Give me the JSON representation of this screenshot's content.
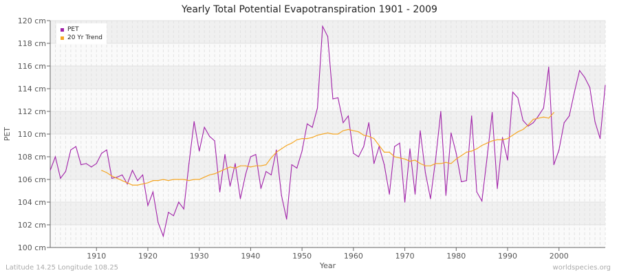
{
  "chart_data": {
    "type": "line",
    "title": "Yearly Total Potential Evapotranspiration 1901 - 2009",
    "xlabel": "Year",
    "ylabel": "PET",
    "ylim": [
      100,
      120
    ],
    "xlim": [
      1901,
      2009
    ],
    "y_unit": "cm",
    "yticks": [
      "100 cm",
      "102 cm",
      "104 cm",
      "106 cm",
      "108 cm",
      "110 cm",
      "112 cm",
      "114 cm",
      "116 cm",
      "118 cm",
      "120 cm"
    ],
    "xticks": [
      "1910",
      "1920",
      "1930",
      "1940",
      "1950",
      "1960",
      "1970",
      "1980",
      "1990",
      "2000"
    ],
    "grid": true,
    "legend_position": "top-left",
    "series": [
      {
        "name": "PET",
        "color": "#a020a8",
        "start_year": 1901,
        "values": [
          106.8,
          108.0,
          106.1,
          106.7,
          108.6,
          108.9,
          107.3,
          107.4,
          107.1,
          107.4,
          108.3,
          108.6,
          106.1,
          106.2,
          106.4,
          105.6,
          106.8,
          105.9,
          106.4,
          103.7,
          104.9,
          102.2,
          101.0,
          103.1,
          102.8,
          104.0,
          103.4,
          107.4,
          111.1,
          108.5,
          110.6,
          109.8,
          109.4,
          104.9,
          108.2,
          105.4,
          107.4,
          104.3,
          106.4,
          108.0,
          108.2,
          105.2,
          106.7,
          106.4,
          108.6,
          104.6,
          102.5,
          107.3,
          107.0,
          108.5,
          110.9,
          110.6,
          112.3,
          119.5,
          118.6,
          113.1,
          113.2,
          111.0,
          111.6,
          108.3,
          108.0,
          108.9,
          111.0,
          107.4,
          108.9,
          107.3,
          104.7,
          108.9,
          109.2,
          104.0,
          108.7,
          104.7,
          110.3,
          106.6,
          104.3,
          107.8,
          112.0,
          104.6,
          110.1,
          108.3,
          105.8,
          105.9,
          111.6,
          104.9,
          104.1,
          107.9,
          111.9,
          105.2,
          109.7,
          107.7,
          113.7,
          113.2,
          111.2,
          110.7,
          111.0,
          111.6,
          112.3,
          115.9,
          107.3,
          108.6,
          111.0,
          111.6,
          113.7,
          115.6,
          115.0,
          114.1,
          111.1,
          109.6,
          114.3
        ]
      },
      {
        "name": "20 Yr Trend",
        "color": "#f5a623",
        "start_year": 1911,
        "values": [
          106.8,
          106.6,
          106.3,
          106.1,
          105.9,
          105.7,
          105.5,
          105.5,
          105.6,
          105.7,
          105.9,
          105.9,
          106.0,
          105.9,
          106.0,
          106.0,
          106.0,
          105.9,
          106.0,
          106.0,
          106.2,
          106.4,
          106.5,
          106.7,
          106.9,
          107.1,
          107.0,
          107.2,
          107.2,
          107.1,
          107.2,
          107.2,
          107.3,
          107.9,
          108.4,
          108.7,
          109.0,
          109.2,
          109.5,
          109.6,
          109.6,
          109.7,
          109.9,
          110.0,
          110.1,
          110.0,
          110.0,
          110.3,
          110.4,
          110.3,
          110.2,
          109.9,
          109.8,
          109.6,
          109.0,
          108.4,
          108.4,
          108.0,
          107.9,
          107.8,
          107.6,
          107.7,
          107.4,
          107.2,
          107.2,
          107.4,
          107.4,
          107.5,
          107.4,
          107.8,
          108.1,
          108.4,
          108.5,
          108.7,
          109.0,
          109.2,
          109.4,
          109.5,
          109.5,
          109.6,
          109.9,
          110.2,
          110.4,
          110.8,
          111.3,
          111.4,
          111.5,
          111.4,
          111.9
        ]
      }
    ]
  },
  "footer": {
    "left": "Latitude 14.25 Longitude 108.25",
    "right": "worldspecies.org"
  }
}
